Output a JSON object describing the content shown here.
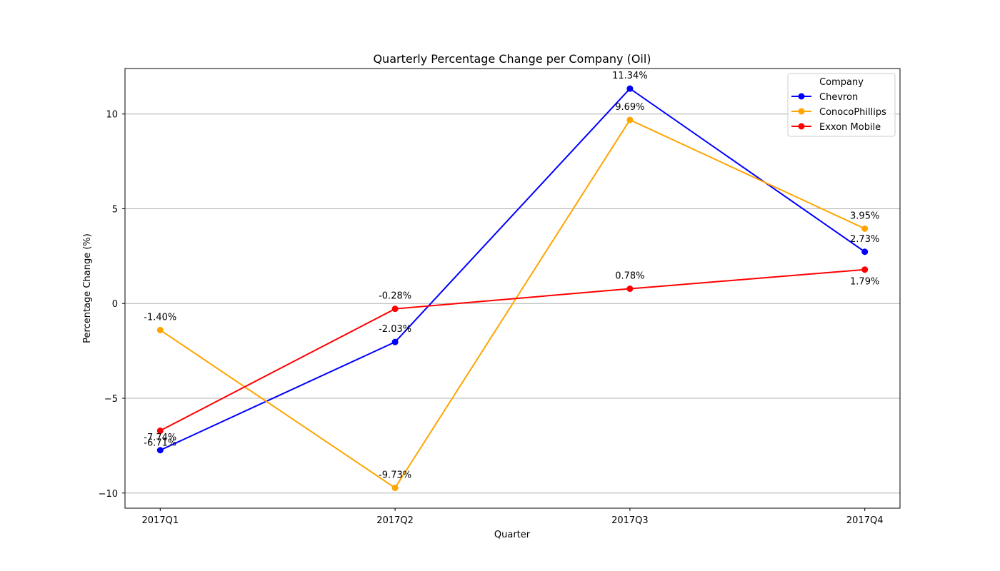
{
  "chart_data": {
    "type": "line",
    "title": "Quarterly Percentage Change per Company (Oil)",
    "xlabel": "Quarter",
    "ylabel": "Percentage Change (%)",
    "categories": [
      "2017Q1",
      "2017Q2",
      "2017Q3",
      "2017Q4"
    ],
    "ylim": [
      -10.8,
      12.4
    ],
    "yticks": [
      -10,
      -5,
      0,
      5,
      10
    ],
    "ytick_labels": [
      "−10",
      "−5",
      "0",
      "5",
      "10"
    ],
    "grid": "horizontal",
    "legend": {
      "title": "Company",
      "placement": "top-right"
    },
    "series": [
      {
        "name": "Chevron",
        "color": "#0000ff",
        "values": [
          -7.74,
          -2.03,
          11.34,
          2.73
        ],
        "labels": [
          "-7.74%",
          "-2.03%",
          "11.34%",
          "2.73%"
        ],
        "label_position": [
          "above",
          "above",
          "above",
          "above"
        ]
      },
      {
        "name": "ConocoPhillips",
        "color": "#ffa500",
        "values": [
          -1.4,
          -9.73,
          9.69,
          3.95
        ],
        "labels": [
          "-1.40%",
          "-9.73%",
          "9.69%",
          "3.95%"
        ],
        "label_position": [
          "above",
          "above",
          "above",
          "above"
        ]
      },
      {
        "name": "Exxon Mobile",
        "color": "#ff0000",
        "values": [
          -6.71,
          -0.28,
          0.78,
          1.79
        ],
        "labels": [
          "-6.71%",
          "-0.28%",
          "0.78%",
          "1.79%"
        ],
        "label_position": [
          "below",
          "above",
          "above",
          "below"
        ]
      }
    ]
  }
}
